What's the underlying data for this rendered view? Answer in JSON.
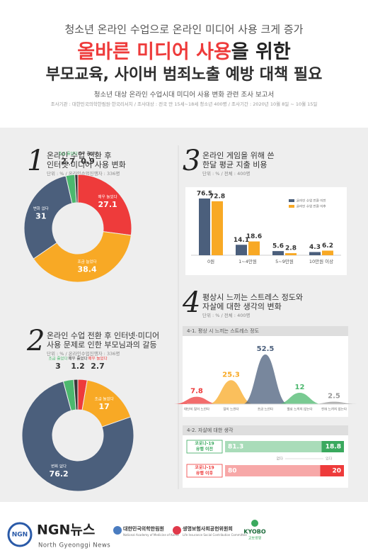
{
  "header": {
    "kicker": "청소년 온라인 수업으로 온라인 미디어 사용 크게 증가",
    "headline_red": "올바른 미디어 사용",
    "headline_rest": "을 위한",
    "headline2": "부모교육, 사이버 범죄노출 예방 대책 필요",
    "report": "청소년 대상 온라인 수업시대 미디어 사용 변화 관련 조사 보고서",
    "survey": "조사기관 : 대한민국의학한림원·한국리서치 / 조사대상 : 전국 만 15세~18세 청소년 400명 / 조사기간 : 2020년 10월 8일 ~ 10월 15일"
  },
  "chart_data": [
    {
      "type": "donut",
      "number": "1",
      "title": [
        "온라인 수업 전환 후",
        "인터넷·미디어 사용 변화"
      ],
      "unit": "단위 : % / 온라인수업진행자 : 336명",
      "categories": [
        "매우 늘었다",
        "조금 늘었다",
        "변화 없다",
        "조금 줄었다",
        "매우 줄었다"
      ],
      "values": [
        27.1,
        38.4,
        31.0,
        2.7,
        0.9
      ],
      "colors": [
        "#ee3b3b",
        "#f8a925",
        "#4b5f7c",
        "#4cb86e",
        "#3a3a3a"
      ]
    },
    {
      "type": "donut",
      "number": "2",
      "title": [
        "온라인 수업 전환 후 인터넷·미디어",
        "사용 문제로 인한 부모님과의 갈등"
      ],
      "unit": "단위 : % / 온라인수업진행자 : 336명",
      "categories": [
        "매우 늘었다",
        "조금 늘었다",
        "변화 없다",
        "조금 줄었다",
        "매우 줄었다"
      ],
      "values": [
        2.7,
        17.0,
        76.2,
        3.0,
        1.2
      ],
      "colors": [
        "#ee3b3b",
        "#f8a925",
        "#4b5f7c",
        "#4cb86e",
        "#3a3a3a"
      ]
    },
    {
      "type": "bar",
      "number": "3",
      "title": [
        "온라인 게임을 위해 쓴",
        "한달 평균 지출 비용"
      ],
      "unit": "단위 : % / 전체 : 400명",
      "categories": [
        "0원",
        "1~4만원",
        "5~9만원",
        "10만원 이상"
      ],
      "series": [
        {
          "name": "온라인 수업 전환 이전",
          "color": "#4b5f7c",
          "values": [
            76.5,
            14.1,
            5.6,
            4.3
          ]
        },
        {
          "name": "온라인 수업 전환 이후",
          "color": "#f8a925",
          "values": [
            72.8,
            18.6,
            2.8,
            6.2
          ]
        }
      ]
    },
    {
      "type": "area",
      "number": "4",
      "title": [
        "평상시 느끼는 스트레스 정도와",
        "자살에 대한 생각의 변화"
      ],
      "unit": "단위 : % / 전체 : 400명",
      "panel_title": "4-1. 평상 시 느끼는 스트레스 정도",
      "categories": [
        "대단히 많이 느낀다",
        "많이 느낀다",
        "조금 느낀다",
        "별로 느끼지 않는다",
        "전혀 느끼지 않는다"
      ],
      "values": [
        7.8,
        25.3,
        52.5,
        12.0,
        2.5
      ],
      "colors": [
        "#ee3b3b",
        "#f8a925",
        "#4b5f7c",
        "#4cb86e",
        "#9a9a9a"
      ]
    },
    {
      "type": "stacked_bar",
      "panel_title": "4-2. 자살에 대한 생각",
      "categories": [
        [
          "코로나-19",
          "유행 이전"
        ],
        [
          "코로나-19",
          "유행 이후"
        ]
      ],
      "legend": [
        "없다",
        "있다"
      ],
      "series": [
        {
          "name": "없다",
          "colors": [
            "#a9dcb9",
            "#f7a8a8"
          ],
          "values": [
            81.3,
            80.0
          ]
        },
        {
          "name": "있다",
          "colors": [
            "#3aa95e",
            "#ee3b3b"
          ],
          "values": [
            18.8,
            20.0
          ]
        }
      ]
    }
  ],
  "footer": {
    "logo": "NGN",
    "brand": "NGN뉴스",
    "brand_en": "North Gyeonggi News",
    "sponsors": [
      {
        "name": "대한민국의학한림원",
        "en": "National Academy of Medicine of Korea"
      },
      {
        "name": "생명보험사회공헌위원회",
        "en": "Life Insurance Social Contribution Committee"
      },
      {
        "name": "KYOBO",
        "en": "교보생명"
      }
    ]
  }
}
